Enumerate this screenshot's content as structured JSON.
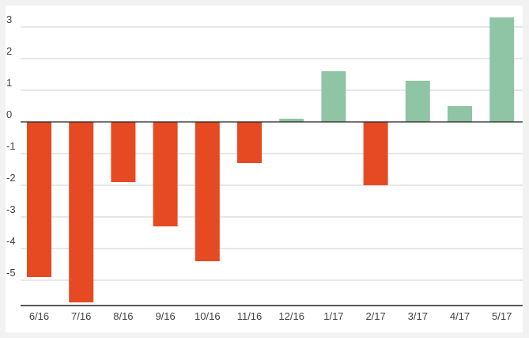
{
  "chart_data": {
    "type": "bar",
    "categories": [
      "6/16",
      "7/16",
      "8/16",
      "9/16",
      "10/16",
      "11/16",
      "12/16",
      "1/17",
      "2/17",
      "3/17",
      "4/17",
      "5/17"
    ],
    "values": [
      -4.9,
      -5.7,
      -1.9,
      -3.3,
      -4.4,
      -1.3,
      0.1,
      1.6,
      -2.0,
      1.3,
      0.5,
      3.3
    ],
    "yticks": [
      "3",
      "2",
      "1",
      "0",
      "-1",
      "-2",
      "-3",
      "-4",
      "-5"
    ],
    "ylim": [
      -5.8,
      3.3
    ],
    "grid": true,
    "legend": "none",
    "colors": {
      "positive": "#8fc4a5",
      "negative": "#e64a23",
      "grid": "#cfcfcf",
      "axis": "#222222"
    }
  }
}
